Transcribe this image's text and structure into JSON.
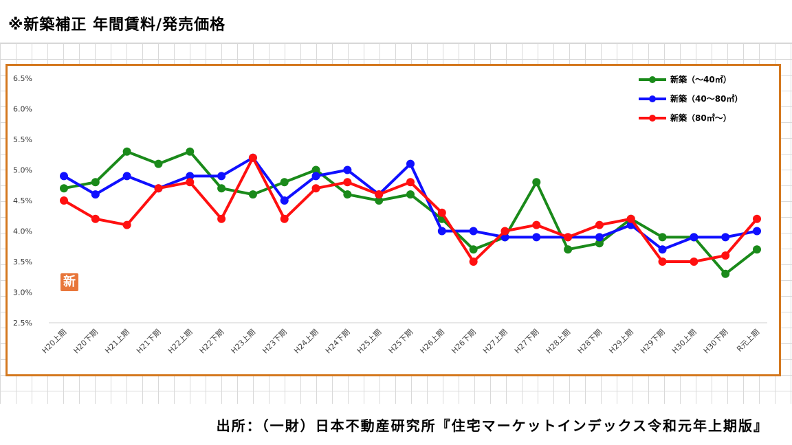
{
  "page": {
    "title": "※新築補正 年間賃料/発売価格",
    "source": "出所：（一財）日本不動産研究所『住宅マーケットインデックス令和元年上期版』",
    "stamp": "新"
  },
  "colors": {
    "frame": "#d4781e",
    "series": [
      "#1a8a1a",
      "#1010ff",
      "#ff1010"
    ]
  },
  "chart_data": {
    "type": "line",
    "title": "",
    "xlabel": "",
    "ylabel": "",
    "ylim": [
      2.5,
      6.5
    ],
    "yticks": [
      "6.5%",
      "6.0%",
      "5.5%",
      "5.0%",
      "4.5%",
      "4.0%",
      "3.5%",
      "3.0%",
      "2.5%"
    ],
    "grid": false,
    "legend_position": "top-right",
    "categories": [
      "H20上期",
      "H20下期",
      "H21上期",
      "H21下期",
      "H22上期",
      "H22下期",
      "H23上期",
      "H23下期",
      "H24上期",
      "H24下期",
      "H25上期",
      "H25下期",
      "H26上期",
      "H26下期",
      "H27上期",
      "H27下期",
      "H28上期",
      "H28下期",
      "H29上期",
      "H29下期",
      "H30上期",
      "H30下期",
      "R元上期"
    ],
    "series": [
      {
        "name": "新築（～40㎡）",
        "values": [
          4.7,
          4.8,
          5.3,
          5.1,
          5.3,
          4.7,
          4.6,
          4.8,
          5.0,
          4.6,
          4.5,
          4.6,
          4.2,
          3.7,
          3.9,
          4.8,
          3.7,
          3.8,
          4.2,
          3.9,
          3.9,
          3.3,
          3.7
        ]
      },
      {
        "name": "新築（40～80㎡）",
        "values": [
          4.9,
          4.6,
          4.9,
          4.7,
          4.9,
          4.9,
          5.2,
          4.5,
          4.9,
          5.0,
          4.6,
          5.1,
          4.0,
          4.0,
          3.9,
          3.9,
          3.9,
          3.9,
          4.1,
          3.7,
          3.9,
          3.9,
          4.0
        ]
      },
      {
        "name": "新築（80㎡～）",
        "values": [
          4.5,
          4.2,
          4.1,
          4.7,
          4.8,
          4.2,
          5.2,
          4.2,
          4.7,
          4.8,
          4.6,
          4.8,
          4.3,
          3.5,
          4.0,
          4.1,
          3.9,
          4.1,
          4.2,
          3.5,
          3.5,
          3.6,
          4.2
        ]
      }
    ]
  }
}
